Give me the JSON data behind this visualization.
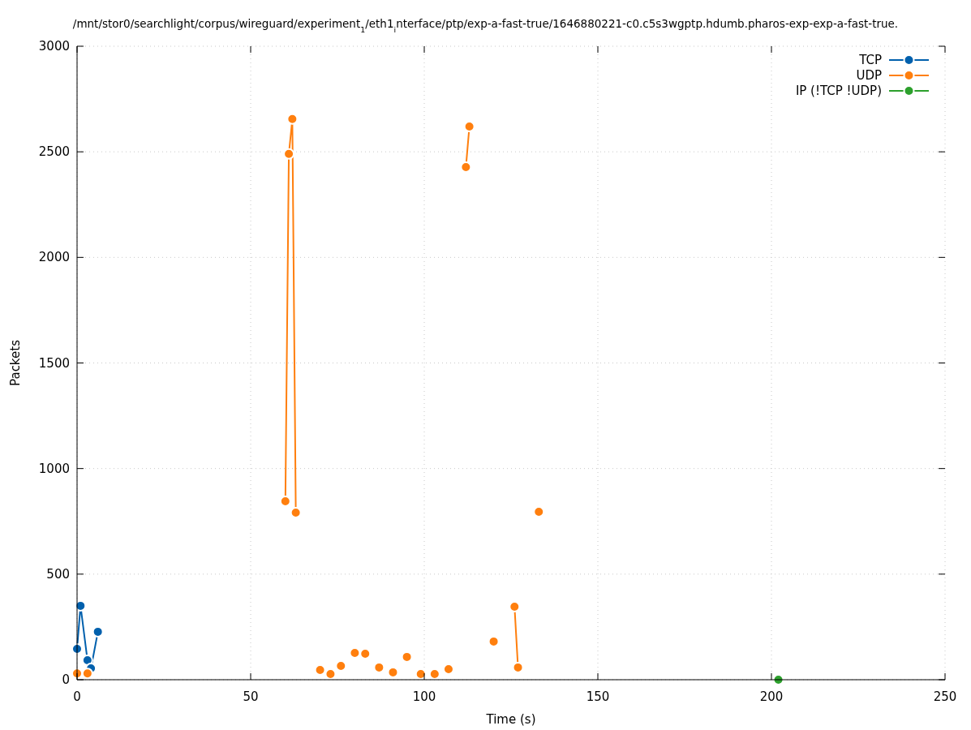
{
  "chart_data": {
    "type": "line",
    "title": "/mnt/stor0/searchlight/corpus/wireguard/experiment$_{1}$/eth1$_{i}$nterface/ptp/exp-a-fast-true/1646880221-c0.c5s3wgptp.hdumb.pharos-exp-exp-a-fast-true.",
    "xlabel": "Time (s)",
    "ylabel": "Packets",
    "xlim": [
      0,
      250
    ],
    "xticks": [
      0,
      50,
      100,
      150,
      200,
      250
    ],
    "ylim": [
      0,
      3000
    ],
    "yticks": [
      0,
      500,
      1000,
      1500,
      2000,
      2500,
      3000
    ],
    "grid": true,
    "legend": "top right",
    "marker": "circle",
    "line_style": "solid",
    "series": [
      {
        "name": "TCP",
        "color": "#0060ad",
        "x": [
          0,
          1,
          3,
          4,
          6
        ],
        "values": [
          146,
          350,
          92,
          54,
          227
        ]
      },
      {
        "name": "UDP",
        "color": "#ff7f0e",
        "x": [
          0,
          1,
          3,
          4,
          60,
          61,
          62,
          63,
          64,
          70,
          71,
          73,
          74,
          76,
          77,
          80,
          81,
          83,
          84,
          87,
          88,
          91,
          92,
          95,
          96,
          99,
          100,
          103,
          104,
          107,
          108,
          112,
          113,
          114,
          120,
          121,
          126,
          127,
          128,
          133
        ],
        "values": [
          30,
          null,
          30,
          null,
          845,
          2490,
          2655,
          791,
          null,
          46,
          null,
          27,
          null,
          65,
          null,
          127,
          null,
          123,
          null,
          58,
          null,
          35,
          null,
          108,
          null,
          27,
          null,
          27,
          null,
          50,
          null,
          2428,
          2620,
          null,
          181,
          null,
          346,
          58,
          null,
          795
        ]
      },
      {
        "name": "IP (!TCP  !UDP)",
        "color": "#2ca02c",
        "x": [
          202
        ],
        "values": [
          0
        ]
      }
    ]
  }
}
